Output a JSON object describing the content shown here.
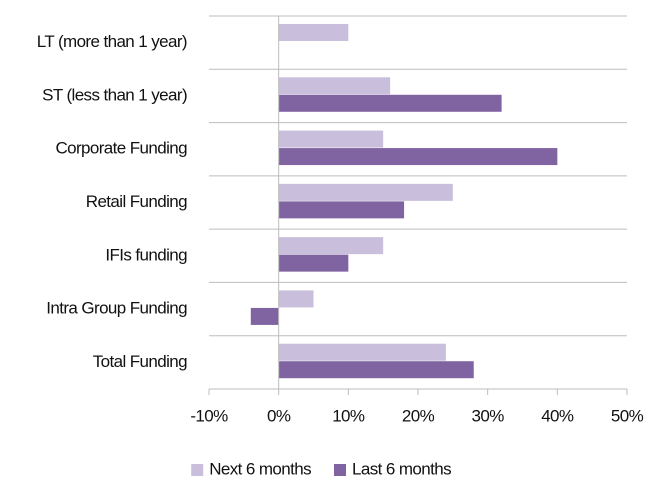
{
  "chart_data": {
    "type": "hbar",
    "categories": [
      "LT (more than 1 year)",
      "ST (less than 1 year)",
      "Corporate Funding",
      "Retail Funding",
      "IFIs funding",
      "Intra Group Funding",
      "Total Funding"
    ],
    "series": [
      {
        "name": "Next 6 months",
        "color": "#c9bfdc",
        "values": [
          10,
          16,
          15,
          25,
          15,
          5,
          24
        ]
      },
      {
        "name": "Last 6 months",
        "color": "#8064a2",
        "values": [
          null,
          32,
          40,
          18,
          10,
          -4,
          28
        ]
      }
    ],
    "xlim": [
      -10,
      50
    ],
    "xticks": [
      {
        "value": -10,
        "label": "-10%"
      },
      {
        "value": 0,
        "label": "0%"
      },
      {
        "value": 10,
        "label": "10%"
      },
      {
        "value": 20,
        "label": "20%"
      },
      {
        "value": 30,
        "label": "30%"
      },
      {
        "value": 40,
        "label": "40%"
      },
      {
        "value": 50,
        "label": "50%"
      }
    ],
    "legend": "bottom"
  }
}
